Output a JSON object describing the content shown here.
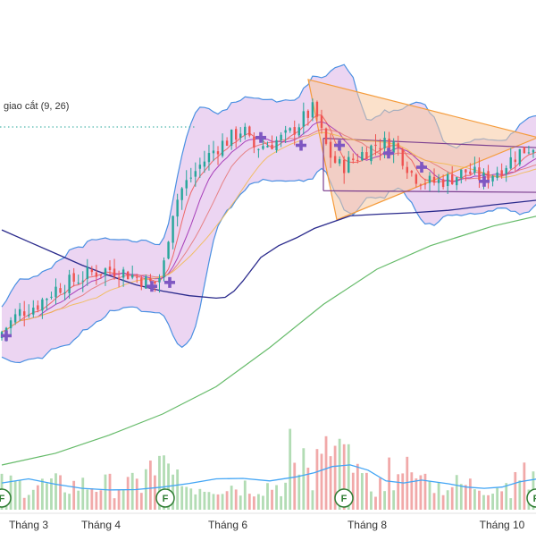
{
  "indicator_legend": "giao cắt (9, 26)",
  "colors": {
    "up": "#26a69a",
    "down": "#ef5350",
    "bb_fill": "#e6c7ee",
    "bb_line": "#4a90e2",
    "ma_long": "#2a2a8c",
    "ma_green": "#66bb6a",
    "ma_orange": "#f2b84b",
    "ma_purple": "#9c27b0",
    "triangle_fill": "#f8c9a0",
    "triangle_line": "#f59c3c",
    "rect_line": "#7b3f8f",
    "cross": "#7e57c2",
    "f_marker": "#2e7d32",
    "dotted_line": "#26a69a",
    "volume_up": "#a5d6a7",
    "volume_down": "#ef9a9a",
    "volume_ma": "#42a5f5"
  },
  "chart_data": {
    "type": "candlestick",
    "x_labels": [
      "Tháng 3",
      "Tháng 4",
      "Tháng 6",
      "Tháng 8",
      "Tháng 10"
    ],
    "ma_long": [
      [
        0,
        75.0
      ],
      [
        3,
        73.5
      ],
      [
        6,
        72.0
      ],
      [
        9,
        70.5
      ],
      [
        12,
        69.2
      ],
      [
        15,
        68.0
      ],
      [
        18,
        67.2
      ],
      [
        21,
        66.6
      ],
      [
        24,
        66.3
      ],
      [
        25,
        66.4
      ],
      [
        26,
        67.2
      ],
      [
        27,
        68.5
      ],
      [
        28,
        70.0
      ],
      [
        29,
        71.5
      ],
      [
        31,
        73.0
      ],
      [
        33,
        74.0
      ],
      [
        35,
        75.2
      ],
      [
        37,
        76.0
      ],
      [
        39,
        76.8
      ],
      [
        42,
        77.0
      ],
      [
        46,
        77.2
      ],
      [
        50,
        77.5
      ],
      [
        55,
        78.2
      ],
      [
        60,
        78.8
      ]
    ],
    "ma_green": [
      [
        0,
        45.0
      ],
      [
        6,
        46.5
      ],
      [
        12,
        48.8
      ],
      [
        18,
        51.5
      ],
      [
        24,
        55.0
      ],
      [
        30,
        60.0
      ],
      [
        36,
        65.5
      ],
      [
        42,
        70.0
      ],
      [
        48,
        73.0
      ],
      [
        55,
        75.5
      ],
      [
        60,
        76.8
      ]
    ],
    "triangle": [
      [
        34.3,
        94.2
      ],
      [
        60,
        86.8
      ],
      [
        37.5,
        76.3
      ]
    ],
    "rectangle": [
      [
        36,
        86.7
      ],
      [
        60,
        85.5
      ],
      [
        36,
        80.0
      ],
      [
        60,
        79.8
      ]
    ],
    "crosses": [
      [
        0.5,
        61.5
      ],
      [
        16.8,
        67.8
      ],
      [
        18.8,
        68.3
      ],
      [
        29.0,
        86.8
      ],
      [
        33.5,
        85.8
      ],
      [
        37.8,
        85.8
      ],
      [
        43.3,
        84.8
      ],
      [
        47.0,
        83.0
      ],
      [
        54.0,
        81.2
      ]
    ],
    "f_markers": [
      0,
      18.3,
      38.3,
      59.8
    ],
    "volume": [],
    "volume_ma": [
      [
        0,
        46.5
      ],
      [
        3,
        47.5
      ],
      [
        6,
        46.2
      ],
      [
        9,
        45.2
      ],
      [
        12,
        44.8
      ],
      [
        15,
        44.9
      ],
      [
        18,
        45.5
      ],
      [
        21,
        46.4
      ],
      [
        24,
        47.5
      ],
      [
        27,
        47.6
      ],
      [
        30,
        47.0
      ],
      [
        33,
        48.0
      ],
      [
        35,
        49.0
      ],
      [
        37,
        50.5
      ],
      [
        39,
        50.9
      ],
      [
        41,
        49.6
      ],
      [
        43,
        47.0
      ],
      [
        45,
        46.5
      ],
      [
        47,
        47.2
      ],
      [
        50,
        46.3
      ],
      [
        52,
        45.5
      ],
      [
        54,
        45.2
      ],
      [
        56,
        45.5
      ],
      [
        58,
        46.8
      ],
      [
        60,
        47.5
      ]
    ]
  }
}
